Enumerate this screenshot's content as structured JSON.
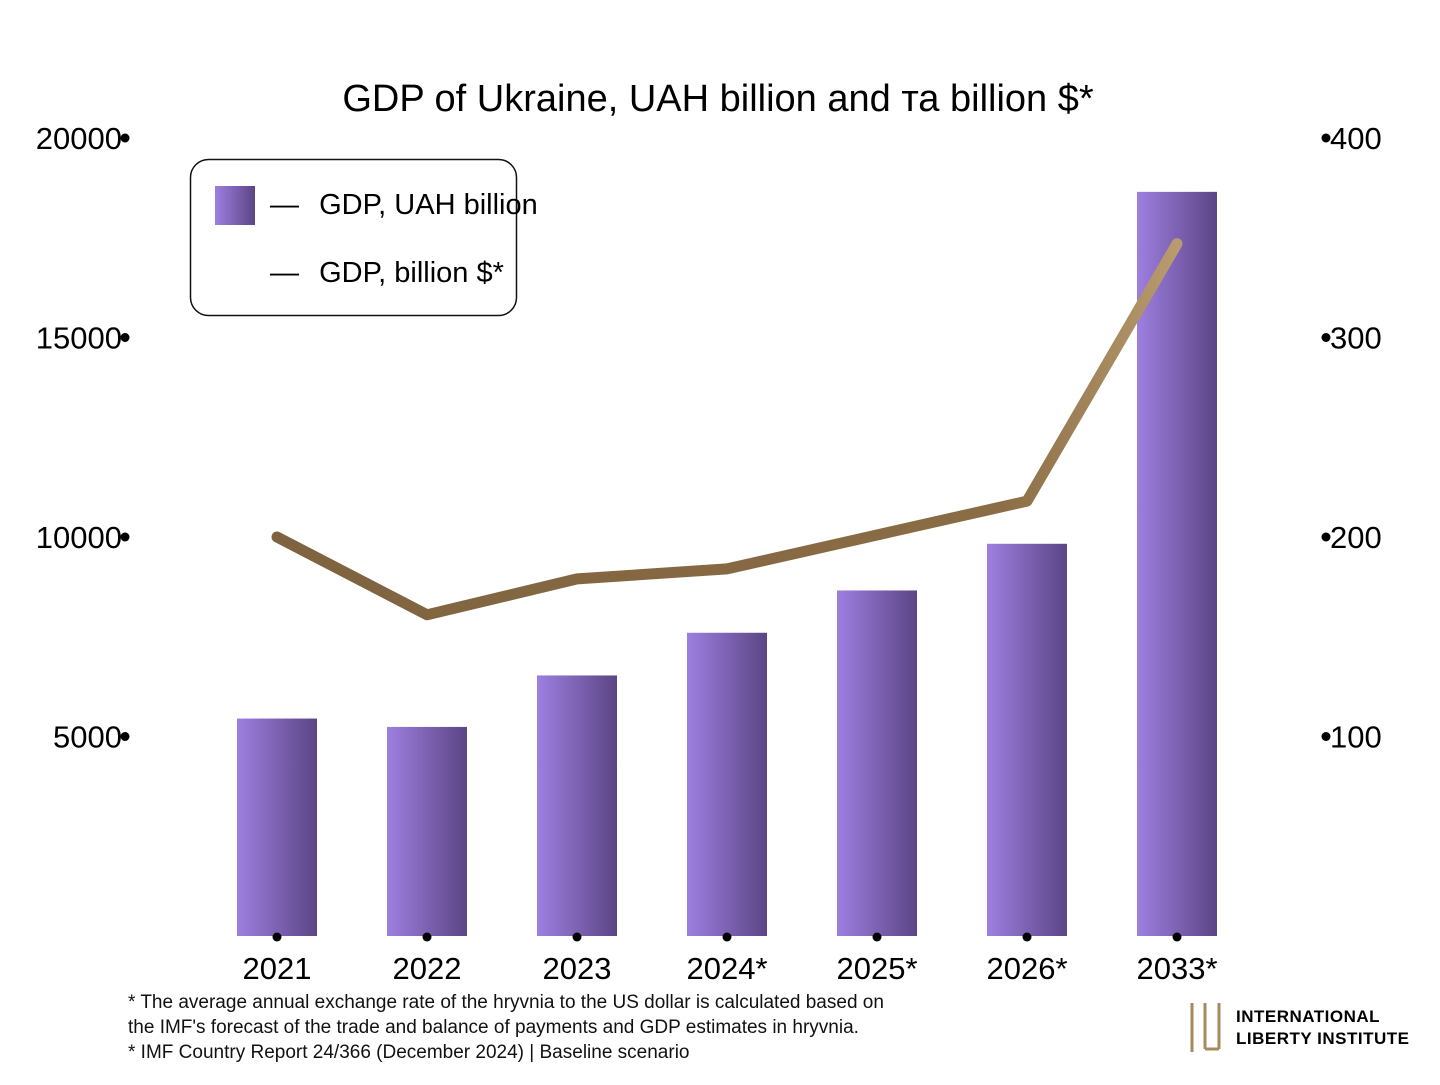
{
  "footnotes": [
    "* The average annual exchange rate of the hryvnia to the US dollar is calculated based on",
    "the IMF's forecast of the trade and balance of payments and GDP estimates in hryvnia.",
    "* IMF Country Report 24/366 (December 2024) | Baseline scenario"
  ],
  "logo": {
    "line1": "International",
    "line2": "Liberty Institute"
  },
  "colors": {
    "bar_light": "#9d7fe0",
    "bar_dark": "#5c4585",
    "line": "#7f6340",
    "line_light": "#b89b6e",
    "left_axis": "#8a6fd0",
    "right_axis": "#a58a60",
    "text": "#111111"
  },
  "chart_data": {
    "type": "bar",
    "title": "GDP of Ukraine, UAH billion and та billion $*",
    "categories": [
      "2021",
      "2022",
      "2023",
      "2024*",
      "2025*",
      "2026*",
      "2033*"
    ],
    "series": [
      {
        "name": "GDP, UAH billion",
        "type": "bar",
        "axis": "left",
        "values": [
          5450,
          5240,
          6530,
          7600,
          8660,
          9830,
          18650
        ]
      },
      {
        "name": "GDP, billion $*",
        "type": "line",
        "axis": "right",
        "values": [
          200,
          161,
          179,
          184,
          201,
          218,
          347
        ]
      }
    ],
    "left_axis": {
      "ylim": [
        0,
        20000
      ],
      "ticks": [
        "5000",
        "10000",
        "15000",
        "20000"
      ]
    },
    "right_axis": {
      "ylim": [
        0,
        400
      ],
      "ticks": [
        "100",
        "200",
        "300",
        "400"
      ]
    },
    "legend": {
      "position": "top-left",
      "dash": "—"
    },
    "grid": false
  }
}
